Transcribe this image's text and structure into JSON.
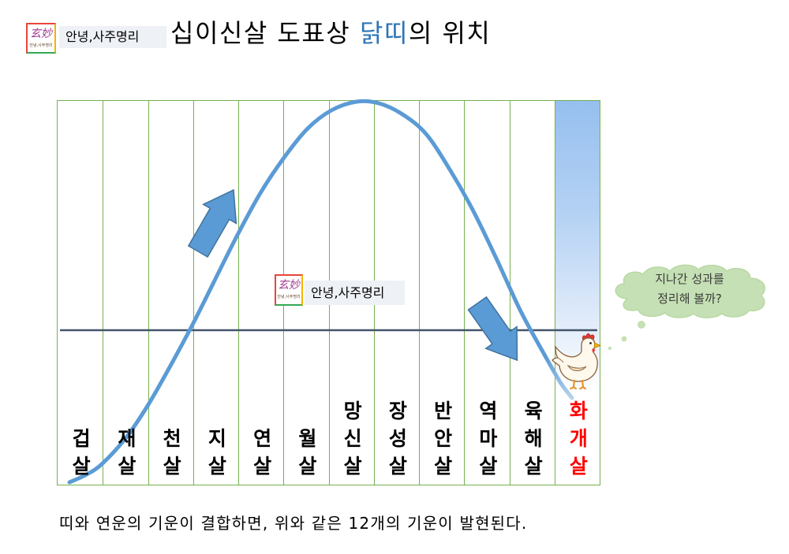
{
  "title": {
    "before": "십이신살 도표상 ",
    "highlight": "닭띠",
    "after": "의 위치",
    "highlight_color": "#2E75B6"
  },
  "brand": {
    "logo_mark": "玄妙",
    "logo_caption": "안녕,사주명리",
    "label": "안녕,사주명리",
    "frame_colors": [
      "#E8453C",
      "#F4B400",
      "#34A853"
    ]
  },
  "diagram": {
    "columns": [
      {
        "label": "겁살"
      },
      {
        "label": "재살"
      },
      {
        "label": "천살"
      },
      {
        "label": "지살"
      },
      {
        "label": "연살"
      },
      {
        "label": "월살"
      },
      {
        "label": "망신살"
      },
      {
        "label": "장성살"
      },
      {
        "label": "반안살"
      },
      {
        "label": "역마살"
      },
      {
        "label": "육해살"
      },
      {
        "label": "화개살",
        "highlighted": true
      }
    ],
    "label_color": "#000000",
    "highlight_label_color": "#FF0000",
    "highlight_column_color": "#96BFEF",
    "grid_color": "#76B051",
    "curve_color": "#5B9BD5",
    "baseline_color": "#44546A",
    "arrow_color": "#5B9BD5",
    "icons": {
      "rise": "arrow-up-right-icon",
      "fall": "arrow-down-right-icon",
      "mascot": "chicken-icon"
    }
  },
  "thought_bubble": {
    "lines": [
      "지나간 성과를",
      "정리해 볼까?"
    ],
    "fill": "#C5E0B4"
  },
  "caption": "띠와 연운의 기운이 결합하면, 위와 같은 12개의 기운이 발현된다."
}
